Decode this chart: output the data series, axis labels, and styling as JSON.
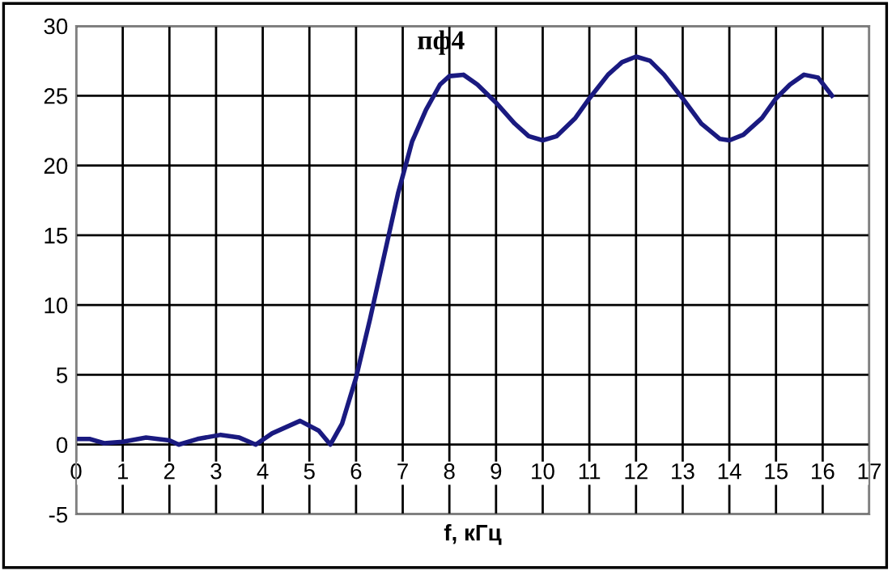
{
  "chart_data": {
    "type": "line",
    "title": "пф4",
    "xlabel": "f, кГц",
    "x": [
      0,
      0.3,
      0.6,
      1.0,
      1.5,
      2.0,
      2.2,
      2.6,
      3.1,
      3.5,
      3.85,
      4.2,
      4.8,
      5.2,
      5.45,
      5.7,
      6.0,
      6.3,
      6.6,
      6.9,
      7.2,
      7.5,
      7.8,
      8.0,
      8.3,
      8.6,
      9.0,
      9.4,
      9.7,
      10.0,
      10.3,
      10.7,
      11.0,
      11.4,
      11.7,
      12.0,
      12.3,
      12.6,
      13.0,
      13.4,
      13.8,
      14.0,
      14.3,
      14.7,
      15.0,
      15.3,
      15.6,
      15.9,
      16.2
    ],
    "series": [
      {
        "color": "#1a1a80",
        "values": [
          0.4,
          0.4,
          0.1,
          0.2,
          0.5,
          0.3,
          0,
          0.4,
          0.7,
          0.5,
          0,
          0.8,
          1.7,
          1.0,
          0,
          1.5,
          4.8,
          9,
          13.5,
          18,
          21.7,
          24,
          25.8,
          26.4,
          26.5,
          25.8,
          24.5,
          23,
          22.1,
          21.8,
          22.1,
          23.4,
          24.8,
          26.5,
          27.4,
          27.8,
          27.5,
          26.5,
          24.8,
          23,
          21.9,
          21.8,
          22.2,
          23.4,
          24.8,
          25.8,
          26.5,
          26.3,
          25.0
        ]
      }
    ],
    "xlim": [
      0,
      17
    ],
    "xticks": [
      0,
      1,
      2,
      3,
      4,
      5,
      6,
      7,
      8,
      9,
      10,
      11,
      12,
      13,
      14,
      15,
      16,
      17
    ],
    "ylim": [
      -5,
      30
    ],
    "yticks": [
      -5,
      0,
      5,
      10,
      15,
      20,
      25,
      30
    ],
    "grid": true,
    "marker": "none",
    "line_style": "solid",
    "legend": false
  }
}
